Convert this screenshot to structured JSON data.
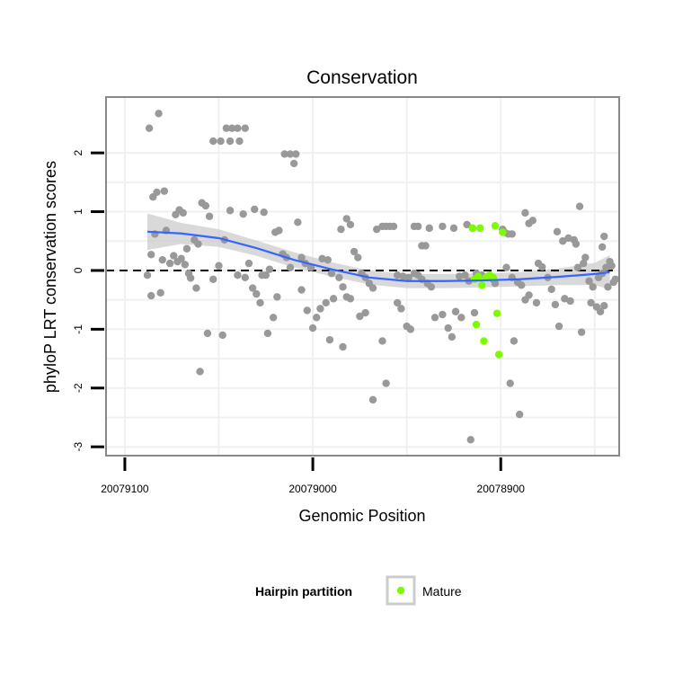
{
  "chart_data": {
    "type": "scatter",
    "title": "Conservation",
    "xlabel": "Genomic Position",
    "ylabel": "phyloP LRT conservation scores",
    "x_reversed": true,
    "xlim": [
      20079110,
      20078837
    ],
    "ylim": [
      -3.15,
      2.95
    ],
    "x_ticks": [
      20079100,
      20079000,
      20078900
    ],
    "x_tick_labels": [
      "20079100",
      "20079000",
      "20078900"
    ],
    "y_ticks": [
      -3,
      -2,
      -1,
      0,
      1,
      2
    ],
    "y_tick_labels": [
      "-3",
      "-2",
      "-1",
      "0",
      "1",
      "2"
    ],
    "grid": true,
    "reference_line": {
      "y": 0,
      "style": "dashed"
    },
    "legend": {
      "title": "Hairpin partition",
      "placement": "bottom",
      "entries": [
        "Mature"
      ]
    },
    "colors": {
      "other": "#999999",
      "mature": "#7cfc00",
      "smooth": "#3366ff",
      "band": "#cccccc",
      "panel_border": "#888888",
      "grid": "#f0f0f0"
    },
    "smooth_curve": {
      "x": [
        20079088,
        20079070,
        20079050,
        20079030,
        20079010,
        20078990,
        20078970,
        20078950,
        20078930,
        20078910,
        20078890,
        20078870,
        20078850,
        20078842
      ],
      "y": [
        0.66,
        0.63,
        0.55,
        0.38,
        0.18,
        0.02,
        -0.12,
        -0.18,
        -0.18,
        -0.17,
        -0.15,
        -0.11,
        -0.06,
        -0.03
      ],
      "band_lower": [
        0.35,
        0.45,
        0.4,
        0.25,
        0.05,
        -0.1,
        -0.24,
        -0.3,
        -0.3,
        -0.29,
        -0.27,
        -0.25,
        -0.25,
        -0.32
      ],
      "band_upper": [
        0.97,
        0.81,
        0.7,
        0.51,
        0.31,
        0.14,
        0.0,
        -0.06,
        -0.06,
        -0.05,
        -0.03,
        0.03,
        0.13,
        0.26
      ]
    },
    "series": [
      {
        "group": "other",
        "points": [
          [
            20079087,
            2.42
          ],
          [
            20079082,
            2.67
          ],
          [
            20079085,
            1.25
          ],
          [
            20079083,
            1.33
          ],
          [
            20079079,
            1.35
          ],
          [
            20079086,
            0.27
          ],
          [
            20079078,
            0.68
          ],
          [
            20079084,
            0.62
          ],
          [
            20079080,
            0.18
          ],
          [
            20079076,
            0.12
          ],
          [
            20079074,
            0.25
          ],
          [
            20079072,
            0.15
          ],
          [
            20079070,
            0.2
          ],
          [
            20079068,
            0.1
          ],
          [
            20079066,
            -0.05
          ],
          [
            20079088,
            -0.08
          ],
          [
            20079086,
            -0.43
          ],
          [
            20079081,
            -0.38
          ],
          [
            20079073,
            0.95
          ],
          [
            20079071,
            1.03
          ],
          [
            20079069,
            0.98
          ],
          [
            20079067,
            0.37
          ],
          [
            20079063,
            0.52
          ],
          [
            20079061,
            0.45
          ],
          [
            20079059,
            1.15
          ],
          [
            20079057,
            1.1
          ],
          [
            20079055,
            0.92
          ],
          [
            20079053,
            -0.15
          ],
          [
            20079065,
            -0.13
          ],
          [
            20079062,
            -0.3
          ],
          [
            20079060,
            -1.72
          ],
          [
            20079056,
            -1.07
          ],
          [
            20079053,
            2.2
          ],
          [
            20079049,
            2.2
          ],
          [
            20079046,
            2.42
          ],
          [
            20079043,
            2.42
          ],
          [
            20079040,
            2.42
          ],
          [
            20079036,
            2.42
          ],
          [
            20079044,
            2.2
          ],
          [
            20079039,
            2.2
          ],
          [
            20079050,
            0.08
          ],
          [
            20079047,
            0.52
          ],
          [
            20079044,
            1.02
          ],
          [
            20079040,
            -0.08
          ],
          [
            20079036,
            -0.12
          ],
          [
            20079032,
            -0.3
          ],
          [
            20079028,
            -0.55
          ],
          [
            20079048,
            -1.1
          ],
          [
            20079037,
            0.96
          ],
          [
            20079034,
            0.12
          ],
          [
            20079030,
            -0.4
          ],
          [
            20079027,
            -0.08
          ],
          [
            20079024,
            -1.07
          ],
          [
            20079021,
            -0.8
          ],
          [
            20079031,
            1.04
          ],
          [
            20079026,
            0.99
          ],
          [
            20079020,
            0.65
          ],
          [
            20079018,
            0.68
          ],
          [
            20079016,
            0.28
          ],
          [
            20079014,
            0.22
          ],
          [
            20079012,
            0.05
          ],
          [
            20079023,
            0.02
          ],
          [
            20079025,
            -0.08
          ],
          [
            20079019,
            -0.45
          ],
          [
            20079015,
            1.98
          ],
          [
            20079012,
            1.98
          ],
          [
            20079009,
            1.98
          ],
          [
            20079010,
            1.82
          ],
          [
            20079008,
            0.82
          ],
          [
            20079006,
            0.22
          ],
          [
            20079004,
            0.12
          ],
          [
            20079001,
            0.05
          ],
          [
            20079006,
            -0.33
          ],
          [
            20079003,
            -0.68
          ],
          [
            20079000,
            -0.98
          ],
          [
            20078998,
            -0.8
          ],
          [
            20078996,
            -0.65
          ],
          [
            20078993,
            -0.55
          ],
          [
            20078991,
            -1.18
          ],
          [
            20078989,
            -0.48
          ],
          [
            20078995,
            0.2
          ],
          [
            20078992,
            0.18
          ],
          [
            20078990,
            -0.05
          ],
          [
            20078986,
            -0.12
          ],
          [
            20078984,
            -0.28
          ],
          [
            20078982,
            -0.45
          ],
          [
            20078980,
            -0.48
          ],
          [
            20078985,
            0.7
          ],
          [
            20078982,
            0.88
          ],
          [
            20078980,
            0.78
          ],
          [
            20078978,
            0.32
          ],
          [
            20078976,
            0.22
          ],
          [
            20078974,
            -0.05
          ],
          [
            20078972,
            -0.12
          ],
          [
            20078970,
            -0.22
          ],
          [
            20078968,
            -0.3
          ],
          [
            20078984,
            -1.3
          ],
          [
            20078975,
            -0.78
          ],
          [
            20078972,
            -0.72
          ],
          [
            20078968,
            -2.2
          ],
          [
            20078963,
            -1.2
          ],
          [
            20078961,
            -1.92
          ],
          [
            20078966,
            0.7
          ],
          [
            20078963,
            0.75
          ],
          [
            20078961,
            0.75
          ],
          [
            20078959,
            0.75
          ],
          [
            20078957,
            0.75
          ],
          [
            20078955,
            -0.55
          ],
          [
            20078953,
            -0.65
          ],
          [
            20078950,
            -0.95
          ],
          [
            20078948,
            -1.0
          ],
          [
            20078955,
            -0.08
          ],
          [
            20078952,
            -0.1
          ],
          [
            20078949,
            -0.12
          ],
          [
            20078946,
            -0.05
          ],
          [
            20078944,
            -0.08
          ],
          [
            20078942,
            -0.15
          ],
          [
            20078939,
            -0.22
          ],
          [
            20078937,
            -0.28
          ],
          [
            20078946,
            0.75
          ],
          [
            20078944,
            0.75
          ],
          [
            20078942,
            0.42
          ],
          [
            20078940,
            0.42
          ],
          [
            20078938,
            0.72
          ],
          [
            20078935,
            -0.8
          ],
          [
            20078931,
            -0.75
          ],
          [
            20078928,
            -0.98
          ],
          [
            20078926,
            -1.13
          ],
          [
            20078931,
            0.75
          ],
          [
            20078925,
            0.72
          ],
          [
            20078922,
            -0.1
          ],
          [
            20078919,
            -0.08
          ],
          [
            20078917,
            -0.18
          ],
          [
            20078924,
            -0.7
          ],
          [
            20078921,
            -0.8
          ],
          [
            20078916,
            -2.88
          ],
          [
            20078918,
            0.78
          ],
          [
            20078915,
            0.72
          ],
          [
            20078913,
            -0.05
          ],
          [
            20078910,
            -0.08
          ],
          [
            20078914,
            -0.72
          ],
          [
            20078906,
            -0.1
          ],
          [
            20078904,
            -0.15
          ],
          [
            20078903,
            -0.22
          ],
          [
            20078898,
            0.65
          ],
          [
            20078896,
            0.62
          ],
          [
            20078894,
            0.62
          ],
          [
            20078899,
            0.7
          ],
          [
            20078897,
            0.05
          ],
          [
            20078894,
            -0.12
          ],
          [
            20078891,
            -0.2
          ],
          [
            20078889,
            -0.25
          ],
          [
            20078895,
            -1.92
          ],
          [
            20078893,
            -1.2
          ],
          [
            20078890,
            -2.45
          ],
          [
            20078887,
            -0.5
          ],
          [
            20078885,
            -0.42
          ],
          [
            20078881,
            -0.55
          ],
          [
            20078887,
            0.98
          ],
          [
            20078885,
            0.8
          ],
          [
            20078883,
            0.85
          ],
          [
            20078880,
            0.12
          ],
          [
            20078878,
            0.06
          ],
          [
            20078875,
            -0.12
          ],
          [
            20078873,
            -0.32
          ],
          [
            20078871,
            -0.58
          ],
          [
            20078869,
            -0.95
          ],
          [
            20078866,
            -0.48
          ],
          [
            20078870,
            0.66
          ],
          [
            20078867,
            0.5
          ],
          [
            20078864,
            0.55
          ],
          [
            20078861,
            0.52
          ],
          [
            20078859,
            0.05
          ],
          [
            20078856,
            0.12
          ],
          [
            20078853,
            -0.18
          ],
          [
            20078851,
            -0.28
          ],
          [
            20078858,
            1.09
          ],
          [
            20078860,
            0.45
          ],
          [
            20078855,
            0.22
          ],
          [
            20078852,
            -0.55
          ],
          [
            20078849,
            -0.62
          ],
          [
            20078847,
            -0.7
          ],
          [
            20078845,
            -0.6
          ],
          [
            20078843,
            -0.28
          ],
          [
            20078857,
            -1.05
          ],
          [
            20078863,
            -0.52
          ],
          [
            20078848,
            -0.12
          ],
          [
            20078846,
            -0.05
          ],
          [
            20078844,
            0.05
          ],
          [
            20078842,
            0.15
          ],
          [
            20078840,
            -0.2
          ],
          [
            20078846,
            0.4
          ],
          [
            20078845,
            0.58
          ],
          [
            20078841,
            0.08
          ],
          [
            20078839,
            -0.15
          ]
        ]
      },
      {
        "group": "mature",
        "name": "Mature",
        "points": [
          [
            20078915,
            0.72
          ],
          [
            20078911,
            0.72
          ],
          [
            20078903,
            0.76
          ],
          [
            20078899,
            0.65
          ],
          [
            20078913,
            -0.92
          ],
          [
            20078909,
            -1.2
          ],
          [
            20078902,
            -0.73
          ],
          [
            20078901,
            -1.43
          ],
          [
            20078914,
            -0.15
          ],
          [
            20078912,
            -0.1
          ],
          [
            20078910,
            -0.25
          ],
          [
            20078908,
            -0.12
          ],
          [
            20078906,
            -0.08
          ],
          [
            20078904,
            -0.12
          ]
        ]
      }
    ]
  }
}
